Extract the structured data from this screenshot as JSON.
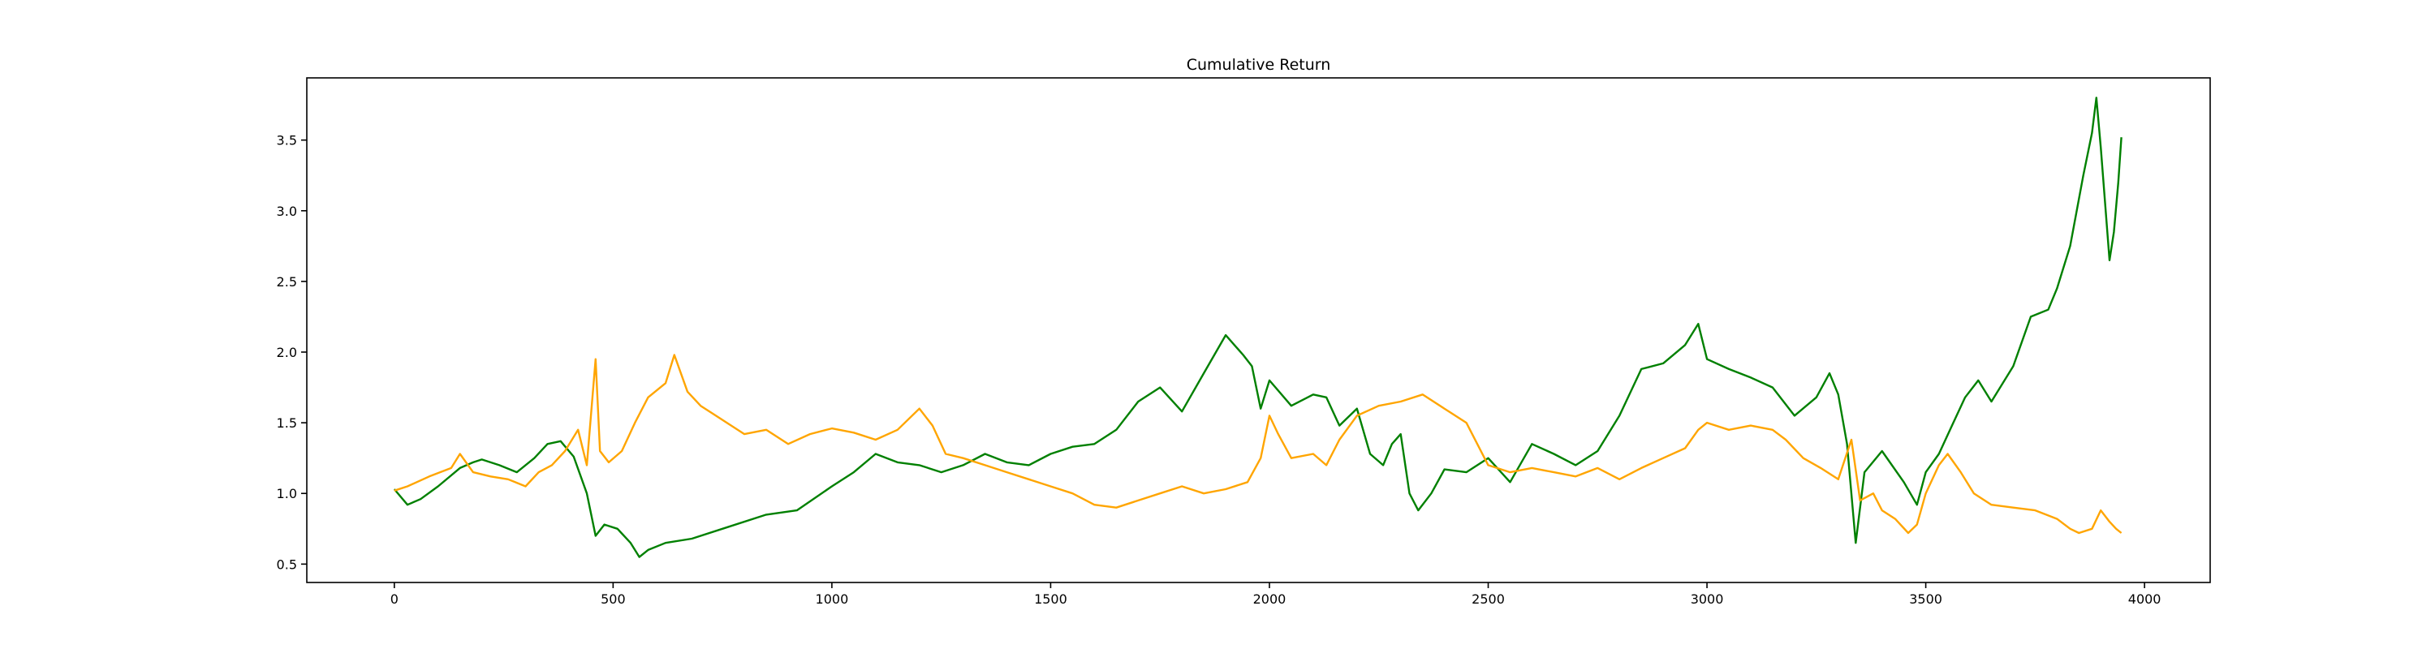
{
  "chart_data": {
    "type": "line",
    "title": "Cumulative Return",
    "xlabel": "",
    "ylabel": "",
    "xlim": [
      -200,
      4150
    ],
    "ylim": [
      0.37,
      3.94
    ],
    "xticks": [
      0,
      500,
      1000,
      1500,
      2000,
      2500,
      3000,
      3500,
      4000
    ],
    "yticks": [
      0.5,
      1.0,
      1.5,
      2.0,
      2.5,
      3.0,
      3.5
    ],
    "grid": false,
    "series": [
      {
        "color": "#008000",
        "points": [
          [
            0,
            1.03
          ],
          [
            30,
            0.92
          ],
          [
            60,
            0.96
          ],
          [
            100,
            1.05
          ],
          [
            150,
            1.18
          ],
          [
            180,
            1.22
          ],
          [
            200,
            1.24
          ],
          [
            240,
            1.2
          ],
          [
            280,
            1.15
          ],
          [
            320,
            1.25
          ],
          [
            350,
            1.35
          ],
          [
            380,
            1.37
          ],
          [
            410,
            1.26
          ],
          [
            440,
            1.0
          ],
          [
            460,
            0.7
          ],
          [
            480,
            0.78
          ],
          [
            510,
            0.75
          ],
          [
            540,
            0.65
          ],
          [
            560,
            0.55
          ],
          [
            580,
            0.6
          ],
          [
            620,
            0.65
          ],
          [
            680,
            0.68
          ],
          [
            750,
            0.75
          ],
          [
            850,
            0.85
          ],
          [
            920,
            0.88
          ],
          [
            1000,
            1.05
          ],
          [
            1050,
            1.15
          ],
          [
            1100,
            1.28
          ],
          [
            1150,
            1.22
          ],
          [
            1200,
            1.2
          ],
          [
            1250,
            1.15
          ],
          [
            1300,
            1.2
          ],
          [
            1350,
            1.28
          ],
          [
            1400,
            1.22
          ],
          [
            1450,
            1.2
          ],
          [
            1500,
            1.28
          ],
          [
            1550,
            1.33
          ],
          [
            1600,
            1.35
          ],
          [
            1650,
            1.45
          ],
          [
            1700,
            1.65
          ],
          [
            1750,
            1.75
          ],
          [
            1800,
            1.58
          ],
          [
            1850,
            1.85
          ],
          [
            1900,
            2.12
          ],
          [
            1940,
            1.98
          ],
          [
            1960,
            1.9
          ],
          [
            1980,
            1.6
          ],
          [
            2000,
            1.8
          ],
          [
            2050,
            1.62
          ],
          [
            2100,
            1.7
          ],
          [
            2130,
            1.68
          ],
          [
            2160,
            1.48
          ],
          [
            2200,
            1.6
          ],
          [
            2230,
            1.28
          ],
          [
            2260,
            1.2
          ],
          [
            2280,
            1.35
          ],
          [
            2300,
            1.42
          ],
          [
            2320,
            1.0
          ],
          [
            2340,
            0.88
          ],
          [
            2370,
            1.0
          ],
          [
            2400,
            1.17
          ],
          [
            2450,
            1.15
          ],
          [
            2500,
            1.25
          ],
          [
            2550,
            1.08
          ],
          [
            2600,
            1.35
          ],
          [
            2650,
            1.28
          ],
          [
            2700,
            1.2
          ],
          [
            2750,
            1.3
          ],
          [
            2800,
            1.55
          ],
          [
            2850,
            1.88
          ],
          [
            2900,
            1.92
          ],
          [
            2950,
            2.05
          ],
          [
            2980,
            2.2
          ],
          [
            3000,
            1.95
          ],
          [
            3050,
            1.88
          ],
          [
            3100,
            1.82
          ],
          [
            3150,
            1.75
          ],
          [
            3200,
            1.55
          ],
          [
            3250,
            1.68
          ],
          [
            3280,
            1.85
          ],
          [
            3300,
            1.7
          ],
          [
            3320,
            1.35
          ],
          [
            3340,
            0.65
          ],
          [
            3360,
            1.15
          ],
          [
            3400,
            1.3
          ],
          [
            3450,
            1.08
          ],
          [
            3480,
            0.92
          ],
          [
            3500,
            1.15
          ],
          [
            3530,
            1.28
          ],
          [
            3560,
            1.48
          ],
          [
            3590,
            1.68
          ],
          [
            3620,
            1.8
          ],
          [
            3650,
            1.65
          ],
          [
            3700,
            1.9
          ],
          [
            3740,
            2.25
          ],
          [
            3780,
            2.3
          ],
          [
            3800,
            2.45
          ],
          [
            3830,
            2.75
          ],
          [
            3860,
            3.25
          ],
          [
            3880,
            3.55
          ],
          [
            3890,
            3.8
          ],
          [
            3900,
            3.45
          ],
          [
            3910,
            3.05
          ],
          [
            3920,
            2.65
          ],
          [
            3930,
            2.85
          ],
          [
            3940,
            3.2
          ],
          [
            3947,
            3.52
          ]
        ]
      },
      {
        "color": "#FFA500",
        "points": [
          [
            0,
            1.02
          ],
          [
            30,
            1.05
          ],
          [
            80,
            1.12
          ],
          [
            130,
            1.18
          ],
          [
            150,
            1.28
          ],
          [
            180,
            1.15
          ],
          [
            220,
            1.12
          ],
          [
            260,
            1.1
          ],
          [
            300,
            1.05
          ],
          [
            330,
            1.15
          ],
          [
            360,
            1.2
          ],
          [
            390,
            1.3
          ],
          [
            420,
            1.45
          ],
          [
            440,
            1.2
          ],
          [
            460,
            1.95
          ],
          [
            470,
            1.3
          ],
          [
            490,
            1.22
          ],
          [
            520,
            1.3
          ],
          [
            550,
            1.5
          ],
          [
            580,
            1.68
          ],
          [
            620,
            1.78
          ],
          [
            640,
            1.98
          ],
          [
            670,
            1.72
          ],
          [
            700,
            1.62
          ],
          [
            750,
            1.52
          ],
          [
            800,
            1.42
          ],
          [
            850,
            1.45
          ],
          [
            900,
            1.35
          ],
          [
            950,
            1.42
          ],
          [
            1000,
            1.46
          ],
          [
            1050,
            1.43
          ],
          [
            1100,
            1.38
          ],
          [
            1150,
            1.45
          ],
          [
            1200,
            1.6
          ],
          [
            1230,
            1.48
          ],
          [
            1260,
            1.28
          ],
          [
            1300,
            1.25
          ],
          [
            1350,
            1.2
          ],
          [
            1400,
            1.15
          ],
          [
            1450,
            1.1
          ],
          [
            1500,
            1.05
          ],
          [
            1550,
            1.0
          ],
          [
            1600,
            0.92
          ],
          [
            1650,
            0.9
          ],
          [
            1700,
            0.95
          ],
          [
            1750,
            1.0
          ],
          [
            1800,
            1.05
          ],
          [
            1850,
            1.0
          ],
          [
            1900,
            1.03
          ],
          [
            1950,
            1.08
          ],
          [
            1980,
            1.25
          ],
          [
            2000,
            1.55
          ],
          [
            2020,
            1.42
          ],
          [
            2050,
            1.25
          ],
          [
            2100,
            1.28
          ],
          [
            2130,
            1.2
          ],
          [
            2160,
            1.38
          ],
          [
            2200,
            1.55
          ],
          [
            2250,
            1.62
          ],
          [
            2300,
            1.65
          ],
          [
            2350,
            1.7
          ],
          [
            2400,
            1.6
          ],
          [
            2450,
            1.5
          ],
          [
            2500,
            1.2
          ],
          [
            2550,
            1.15
          ],
          [
            2600,
            1.18
          ],
          [
            2650,
            1.15
          ],
          [
            2700,
            1.12
          ],
          [
            2750,
            1.18
          ],
          [
            2800,
            1.1
          ],
          [
            2850,
            1.18
          ],
          [
            2900,
            1.25
          ],
          [
            2950,
            1.32
          ],
          [
            2980,
            1.45
          ],
          [
            3000,
            1.5
          ],
          [
            3050,
            1.45
          ],
          [
            3100,
            1.48
          ],
          [
            3150,
            1.45
          ],
          [
            3180,
            1.38
          ],
          [
            3220,
            1.25
          ],
          [
            3260,
            1.18
          ],
          [
            3300,
            1.1
          ],
          [
            3330,
            1.38
          ],
          [
            3350,
            0.95
          ],
          [
            3380,
            1.0
          ],
          [
            3400,
            0.88
          ],
          [
            3430,
            0.82
          ],
          [
            3460,
            0.72
          ],
          [
            3480,
            0.78
          ],
          [
            3500,
            1.0
          ],
          [
            3530,
            1.2
          ],
          [
            3550,
            1.28
          ],
          [
            3580,
            1.15
          ],
          [
            3610,
            1.0
          ],
          [
            3650,
            0.92
          ],
          [
            3700,
            0.9
          ],
          [
            3750,
            0.88
          ],
          [
            3800,
            0.82
          ],
          [
            3830,
            0.75
          ],
          [
            3850,
            0.72
          ],
          [
            3880,
            0.75
          ],
          [
            3900,
            0.88
          ],
          [
            3920,
            0.8
          ],
          [
            3935,
            0.75
          ],
          [
            3947,
            0.72
          ]
        ]
      }
    ]
  }
}
